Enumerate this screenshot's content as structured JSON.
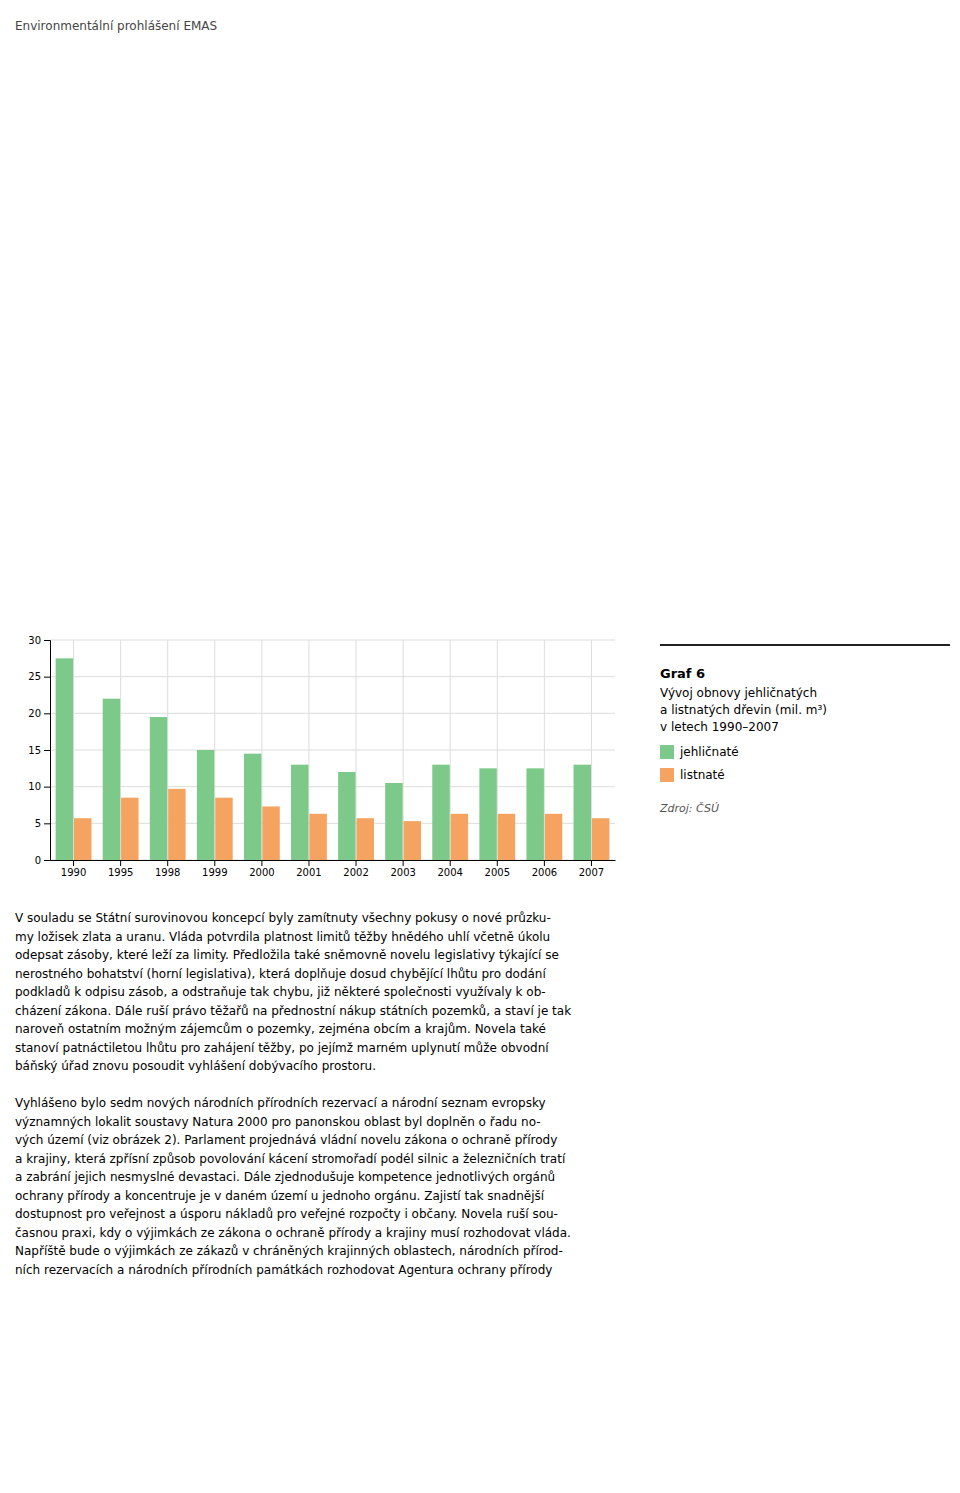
{
  "chart_data": {
    "type": "bar",
    "title": "Graf 6",
    "subtitle": [
      "Vývoj obnovy jehličnatých",
      "a listnatých dřevin (mil. m³)",
      "v letech 1990–2007"
    ],
    "annotations": [
      "Zdroj: ČSÚ"
    ],
    "categories": [
      "1990",
      "1995",
      "1998",
      "1999",
      "2000",
      "2001",
      "2002",
      "2003",
      "2004",
      "2005",
      "2006",
      "2007"
    ],
    "series": [
      {
        "name": "jehličnaté",
        "color": "#7DC98A",
        "values": [
          27.5,
          22.0,
          19.5,
          15.0,
          14.5,
          13.0,
          12.0,
          10.5,
          13.0,
          12.5,
          12.5,
          13.0
        ]
      },
      {
        "name": "listnaté",
        "color": "#F4A460",
        "values": [
          5.7,
          8.5,
          9.7,
          8.5,
          7.3,
          6.3,
          5.7,
          5.3,
          6.3,
          6.3,
          6.3,
          5.7
        ]
      }
    ],
    "ylim": [
      0,
      30
    ],
    "yticks": [
      0,
      5,
      10,
      15,
      20,
      25,
      30
    ],
    "grid": true
  },
  "page": {
    "header": "Environmentální prohlášení EMAS",
    "body": [
      [
        "V souladu se Státní surovinovou koncepcí byly zamítnuty všechny pokusy o nové průzku-",
        "my ložisek zlata a uranu. Vláda potvrdila platnost limitů těžby hnědého uhlí včetně úkolu",
        "odepsat zásoby, které leží za limity. Předložila také sněmovně novelu legislativy týkající se",
        "nerostného bohatství (horní legislativa), která doplňuje dosud chybějící lhůtu pro dodání",
        "podkladů k odpisu zásob, a odstraňuje tak chybu, již některé společnosti využívaly k ob-",
        "cházení zákona. Dále ruší právo těžařů na přednostní nákup státních pozemků, a staví je tak",
        "naroveň ostatním možným zájemcům o pozemky, zejména obcím a krajům. Novela také",
        "stanoví patnáctiletou lhůtu pro zahájení těžby, po jejímž marném uplynutí může obvodní",
        "báňský úřad znovu posoudit vyhlášení dobývacího prostoru."
      ],
      [
        "Vyhlášeno bylo sedm nových národních přírodních rezervací a národní seznam evropsky",
        "významných lokalit soustavy Natura 2000 pro panonskou oblast byl doplněn o řadu no-",
        "vých území (viz obrázek 2). Parlament projednává vládní novelu zákona o ochraně přírody",
        "a krajiny, která zpřísní způsob povolování kácení stromořadí podél silnic a železničních tratí",
        "a zabrání jejich nesmyslné devastaci. Dále zjednodušuje kompetence jednotlivých orgánů",
        "ochrany přírody a koncentruje je v daném území u jednoho orgánu. Zajistí tak snadnější",
        "dostupnost pro veřejnost a úsporu nákladů pro veřejné rozpočty i občany. Novela ruší sou-",
        "časnou praxi, kdy o výjimkách ze zákona o ochraně přírody a krajiny musí rozhodovat vláda.",
        "Napříště bude o výjimkách ze zákazů v chráněných krajinných oblastech, národních přírod-",
        "ních rezervacích a národních přírodních památkách rozhodovat Agentura ochrany přírody"
      ]
    ]
  }
}
